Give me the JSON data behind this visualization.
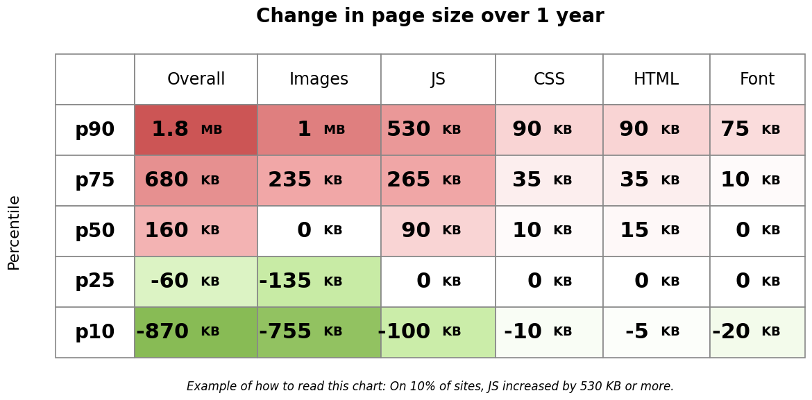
{
  "title": "Change in page size over 1 year",
  "ylabel": "Percentile",
  "footnote": "Example of how to read this chart: On 10% of sites, JS increased by 530 KB or more.",
  "columns": [
    "",
    "Overall",
    "Images",
    "JS",
    "CSS",
    "HTML",
    "Font"
  ],
  "rows": [
    "p90",
    "p75",
    "p50",
    "p25",
    "p10"
  ],
  "numeric_values": [
    [
      1800,
      1000,
      530,
      90,
      90,
      75
    ],
    [
      680,
      235,
      265,
      35,
      35,
      10
    ],
    [
      160,
      0,
      90,
      10,
      15,
      0
    ],
    [
      -60,
      -135,
      0,
      0,
      0,
      0
    ],
    [
      -870,
      -755,
      -100,
      -10,
      -5,
      -20
    ]
  ],
  "value_number_parts": [
    [
      "1.8",
      "1",
      "530",
      "90",
      "90",
      "75"
    ],
    [
      "680",
      "235",
      "265",
      "35",
      "35",
      "10"
    ],
    [
      "160",
      "0",
      "90",
      "10",
      "15",
      "0"
    ],
    [
      "-60",
      "-135",
      "0",
      "0",
      "0",
      "0"
    ],
    [
      "-870",
      "-755",
      "-100",
      "-10",
      "-5",
      "-20"
    ]
  ],
  "value_unit_parts": [
    [
      "MB",
      "MB",
      "KB",
      "KB",
      "KB",
      "KB"
    ],
    [
      "KB",
      "KB",
      "KB",
      "KB",
      "KB",
      "KB"
    ],
    [
      "KB",
      "KB",
      "KB",
      "KB",
      "KB",
      "KB"
    ],
    [
      "KB",
      "KB",
      "KB",
      "KB",
      "KB",
      "KB"
    ],
    [
      "KB",
      "KB",
      "KB",
      "KB",
      "KB",
      "KB"
    ]
  ],
  "max_val": 1800,
  "min_val": -870,
  "red_high": "#cc5555",
  "red_low": "#f2aaaa",
  "green_high": "#88bb55",
  "green_low": "#cceeaa",
  "white": "#ffffff",
  "border_color": "#888888",
  "title_fontsize": 20,
  "header_fontsize": 17,
  "cell_fontsize_number": 22,
  "cell_fontsize_unit": 13,
  "row_label_fontsize": 20,
  "footnote_fontsize": 12,
  "ylabel_fontsize": 16
}
